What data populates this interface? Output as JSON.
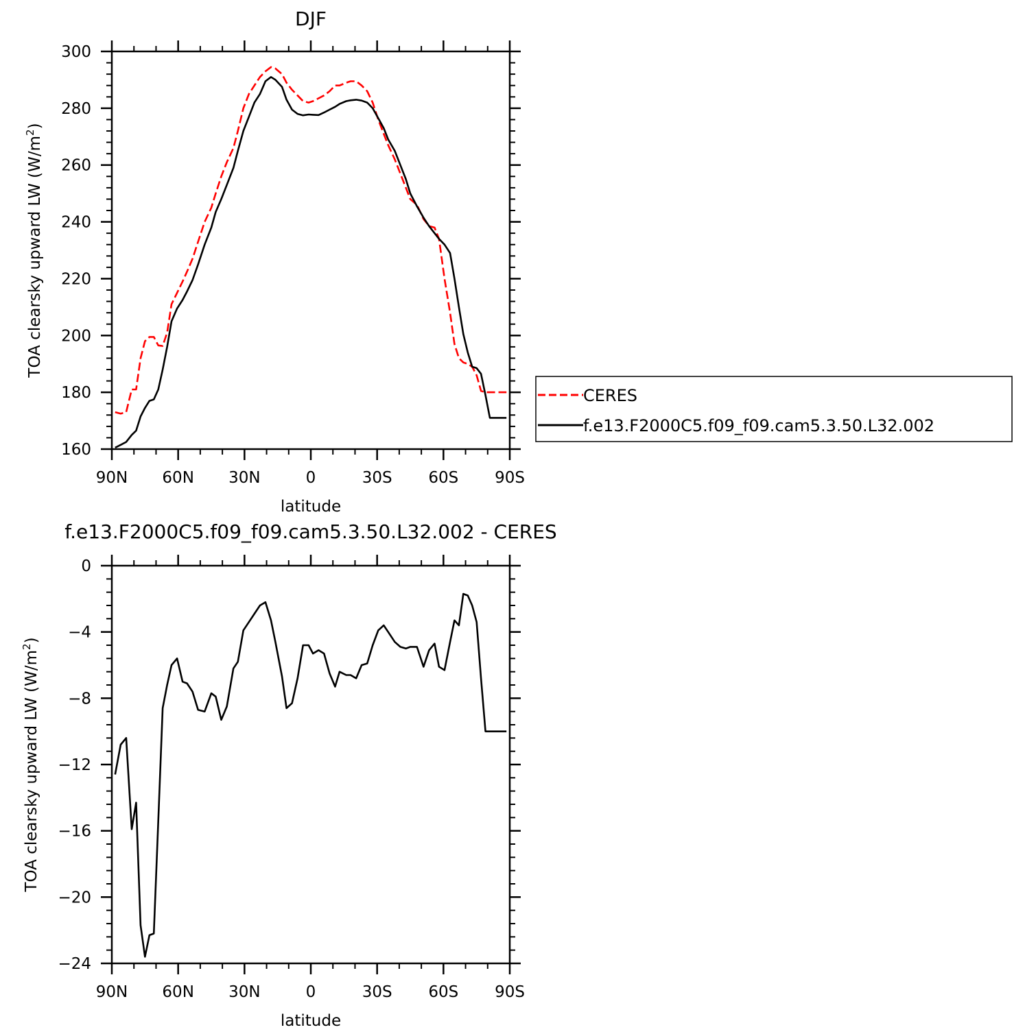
{
  "chart_data": [
    {
      "type": "line",
      "title": "DJF",
      "xlabel": "latitude",
      "ylabel": "TOA clearsky upward LW (W/m",
      "ylabel_sup": "2",
      "ylabel_tail": ")",
      "xlim": [
        90,
        -90
      ],
      "ylim": [
        160,
        300
      ],
      "xticks": [
        {
          "value": 90,
          "label": "90N"
        },
        {
          "value": 60,
          "label": "60N"
        },
        {
          "value": 30,
          "label": "30N"
        },
        {
          "value": 0,
          "label": "0"
        },
        {
          "value": -30,
          "label": "30S"
        },
        {
          "value": -60,
          "label": "60S"
        },
        {
          "value": -90,
          "label": "90S"
        }
      ],
      "yticks": [
        160,
        180,
        200,
        220,
        240,
        260,
        280,
        300
      ],
      "legend": "right",
      "series": [
        {
          "name": "CERES",
          "color": "#ff0000",
          "dash": "dashed",
          "x": [
            88.5,
            86,
            83.5,
            81,
            79,
            77,
            75,
            73,
            71,
            69,
            67,
            65,
            63,
            60.5,
            58,
            56,
            53.5,
            51,
            48,
            45,
            43,
            40.5,
            38,
            35,
            33,
            30.5,
            28,
            25.5,
            23,
            20.5,
            18,
            16,
            13,
            11,
            8.5,
            6,
            3.5,
            1,
            -1,
            -3.5,
            -6,
            -8.5,
            -11,
            -13,
            -16,
            -18,
            -20.5,
            -23,
            -25.5,
            -28,
            -30.5,
            -33,
            -35,
            -38,
            -40.5,
            -43,
            -45,
            -48,
            -51,
            -53.5,
            -56,
            -58,
            -60.5,
            -63,
            -65,
            -67,
            -69,
            -71,
            -73,
            -75,
            -77,
            -79,
            -81,
            -83.5,
            -86,
            -88.5
          ],
          "y": [
            173,
            172.5,
            173,
            181,
            181,
            192,
            198,
            199.5,
            199.5,
            196.5,
            196.3,
            201,
            211,
            215,
            219,
            222.5,
            227,
            233,
            240,
            245,
            250,
            256,
            261,
            266,
            272,
            280,
            285,
            288,
            291,
            293,
            294.5,
            294,
            292,
            289,
            286.5,
            284.5,
            282.5,
            282,
            282.5,
            283.5,
            284.5,
            286,
            288,
            288,
            289,
            289.5,
            289.5,
            288,
            286,
            282,
            276,
            271,
            267,
            262,
            257,
            252,
            248,
            246,
            241,
            238.5,
            238,
            234,
            220,
            208,
            197,
            192,
            190.5,
            190,
            189,
            186,
            180.5,
            180,
            180,
            180,
            180,
            180
          ]
        },
        {
          "name": "f.e13.F2000C5.f09_f09.cam5.3.50.L32.002",
          "color": "#000000",
          "dash": "solid",
          "x": [
            88.5,
            86,
            83.5,
            81,
            79,
            77,
            75,
            73,
            71,
            69,
            67,
            65,
            63,
            60.5,
            58,
            56,
            53.5,
            51,
            48,
            45,
            43,
            40.5,
            38,
            35,
            33,
            30.5,
            28,
            25.5,
            23,
            20.5,
            18,
            16,
            13,
            11,
            8.5,
            6,
            3.5,
            1,
            -1,
            -3.5,
            -6,
            -8.5,
            -11,
            -13,
            -16,
            -18,
            -20.5,
            -23,
            -25.5,
            -28,
            -30.5,
            -33,
            -35,
            -38,
            -40.5,
            -43,
            -45,
            -48,
            -51,
            -53.5,
            -56,
            -58,
            -60.5,
            -63,
            -65,
            -67,
            -69,
            -71,
            -73,
            -75,
            -77,
            -79,
            -81,
            -83.5,
            -86,
            -88.5
          ],
          "y": [
            160.5,
            161.5,
            162.5,
            165,
            166.5,
            171.5,
            174.5,
            177,
            177.5,
            181,
            188,
            196,
            205,
            209.5,
            212.5,
            215.5,
            219.5,
            225,
            232,
            238,
            243.5,
            248,
            253,
            259,
            265,
            272,
            277,
            282,
            285,
            289.5,
            291,
            290,
            287.5,
            283,
            279.5,
            278,
            277.5,
            277.8,
            277.7,
            277.6,
            278.5,
            279.5,
            280.5,
            281.5,
            282.5,
            282.8,
            283,
            282.7,
            282,
            280,
            276.5,
            273,
            269,
            265,
            260,
            255,
            250,
            245.5,
            241.5,
            238.5,
            236,
            234,
            232,
            229,
            220,
            210,
            200.5,
            194,
            189,
            188.5,
            186.5,
            179,
            171,
            171,
            171,
            171
          ]
        }
      ]
    },
    {
      "type": "line",
      "title": "f.e13.F2000C5.f09_f09.cam5.3.50.L32.002 - CERES",
      "xlabel": "latitude",
      "ylabel": "TOA clearsky upward LW (W/m",
      "ylabel_sup": "2",
      "ylabel_tail": ")",
      "xlim": [
        90,
        -90
      ],
      "ylim": [
        -24,
        0
      ],
      "xticks": [
        {
          "value": 90,
          "label": "90N"
        },
        {
          "value": 60,
          "label": "60N"
        },
        {
          "value": 30,
          "label": "30N"
        },
        {
          "value": 0,
          "label": "0"
        },
        {
          "value": -30,
          "label": "30S"
        },
        {
          "value": -60,
          "label": "60S"
        },
        {
          "value": -90,
          "label": "90S"
        }
      ],
      "yticks": [
        -24,
        -20,
        -16,
        -12,
        -8,
        -4,
        0
      ],
      "ytick_labels": [
        "−24",
        "−20",
        "−16",
        "−12",
        "−8",
        "−4",
        "0"
      ],
      "series": [
        {
          "color": "#000000",
          "dash": "solid",
          "x": [
            88.5,
            86,
            83.5,
            81,
            79,
            77,
            75,
            73,
            71,
            69,
            67,
            65,
            63,
            60.5,
            58,
            56,
            53.5,
            51,
            48,
            45,
            43,
            40.5,
            38,
            35,
            33,
            30.5,
            28,
            25.5,
            23,
            20.5,
            18,
            16,
            13,
            11,
            8.5,
            6,
            3.5,
            1,
            -1,
            -3.5,
            -6,
            -8.5,
            -11,
            -13,
            -16,
            -18,
            -20.5,
            -23,
            -25.5,
            -28,
            -30.5,
            -33,
            -35,
            -38,
            -40.5,
            -43,
            -45,
            -48,
            -51,
            -53.5,
            -56,
            -58,
            -60.5,
            -63,
            -65,
            -67,
            -69,
            -71,
            -73,
            -75,
            -77,
            -79,
            -81,
            -83.5,
            -86,
            -88.5
          ],
          "y": [
            -12.6,
            -10.8,
            -10.4,
            -15.9,
            -14.3,
            -21.7,
            -23.6,
            -22.3,
            -22.2,
            -15.4,
            -8.6,
            -7.2,
            -6,
            -5.6,
            -7,
            -7.1,
            -7.6,
            -8.7,
            -8.8,
            -7.7,
            -7.9,
            -9.3,
            -8.5,
            -6.2,
            -5.8,
            -3.9,
            -3.4,
            -2.9,
            -2.4,
            -2.2,
            -3.3,
            -4.6,
            -6.7,
            -8.6,
            -8.3,
            -6.8,
            -4.8,
            -4.8,
            -5.3,
            -5.1,
            -5.3,
            -6.5,
            -7.3,
            -6.4,
            -6.6,
            -6.6,
            -6.8,
            -6,
            -5.9,
            -4.8,
            -3.9,
            -3.6,
            -4,
            -4.6,
            -4.9,
            -5,
            -4.9,
            -4.9,
            -6.1,
            -5.1,
            -4.7,
            -6.1,
            -6.3,
            -4.6,
            -3.3,
            -3.6,
            -1.7,
            -1.8,
            -2.4,
            -3.4,
            -6.8,
            -10,
            -10,
            -10,
            -10,
            -10
          ]
        }
      ]
    }
  ]
}
